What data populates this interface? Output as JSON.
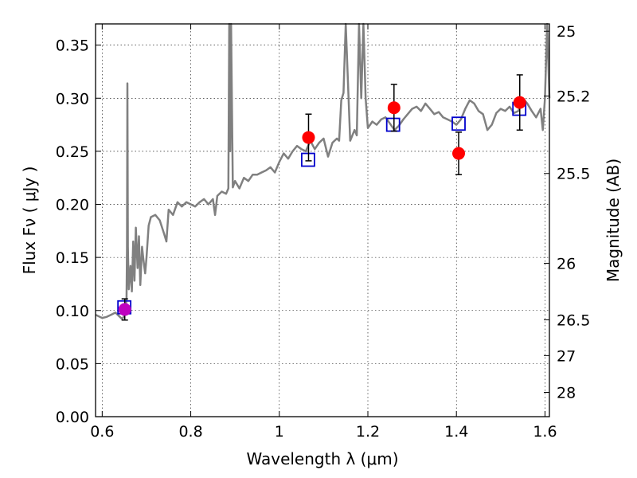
{
  "chart_data": {
    "type": "scatter",
    "xlabel": "Wavelength  λ (μm)",
    "ylabel": "Flux  Fν  ( μJy )",
    "y2label": "Magnitude (AB)",
    "xlim": [
      0.585,
      1.61
    ],
    "ylim": [
      0.0,
      0.37
    ],
    "grid": true,
    "x_ticks": [
      0.6,
      0.8,
      1.0,
      1.2,
      1.4,
      1.6
    ],
    "x_tick_labels": [
      "0.6",
      "0.8",
      "1",
      "1.2",
      "1.4",
      "1.6"
    ],
    "y_ticks": [
      0.0,
      0.05,
      0.1,
      0.15,
      0.2,
      0.25,
      0.3,
      0.35
    ],
    "y_tick_labels": [
      "0.00",
      "0.05",
      "0.10",
      "0.15",
      "0.20",
      "0.25",
      "0.30",
      "0.35"
    ],
    "y2_ticks": [
      {
        "label": "25",
        "flux": 0.3631
      },
      {
        "label": "25.2",
        "flux": 0.302
      },
      {
        "label": "25.5",
        "flux": 0.2291
      },
      {
        "label": "26",
        "flux": 0.1445
      },
      {
        "label": "26.5",
        "flux": 0.0912
      },
      {
        "label": "27",
        "flux": 0.0575
      },
      {
        "label": "28",
        "flux": 0.0229
      }
    ],
    "series": [
      {
        "kind": "line",
        "color": "#808080",
        "x": [
          0.585,
          0.6,
          0.61,
          0.62,
          0.63,
          0.64,
          0.645,
          0.65,
          0.655,
          0.656,
          0.657,
          0.658,
          0.66,
          0.662,
          0.664,
          0.667,
          0.67,
          0.673,
          0.676,
          0.68,
          0.683,
          0.686,
          0.69,
          0.693,
          0.697,
          0.7,
          0.705,
          0.71,
          0.72,
          0.73,
          0.74,
          0.745,
          0.75,
          0.76,
          0.77,
          0.78,
          0.79,
          0.8,
          0.81,
          0.82,
          0.83,
          0.84,
          0.85,
          0.855,
          0.86,
          0.87,
          0.88,
          0.885,
          0.887,
          0.889,
          0.891,
          0.895,
          0.9,
          0.91,
          0.92,
          0.93,
          0.94,
          0.95,
          0.96,
          0.97,
          0.98,
          0.99,
          1.0,
          1.01,
          1.02,
          1.03,
          1.04,
          1.05,
          1.06,
          1.07,
          1.08,
          1.09,
          1.1,
          1.11,
          1.12,
          1.13,
          1.135,
          1.14,
          1.145,
          1.15,
          1.16,
          1.17,
          1.175,
          1.18,
          1.185,
          1.19,
          1.195,
          1.2,
          1.21,
          1.22,
          1.23,
          1.24,
          1.25,
          1.26,
          1.27,
          1.28,
          1.29,
          1.3,
          1.31,
          1.32,
          1.33,
          1.34,
          1.35,
          1.36,
          1.37,
          1.38,
          1.39,
          1.4,
          1.41,
          1.42,
          1.43,
          1.44,
          1.45,
          1.46,
          1.47,
          1.48,
          1.49,
          1.5,
          1.51,
          1.52,
          1.53,
          1.54,
          1.55,
          1.56,
          1.57,
          1.58,
          1.59,
          1.595,
          1.6,
          1.605,
          1.61
        ],
        "y": [
          0.096,
          0.093,
          0.094,
          0.096,
          0.098,
          0.094,
          0.092,
          0.095,
          0.11,
          0.16,
          0.314,
          0.16,
          0.12,
          0.13,
          0.142,
          0.118,
          0.165,
          0.128,
          0.178,
          0.14,
          0.17,
          0.124,
          0.16,
          0.148,
          0.135,
          0.15,
          0.18,
          0.188,
          0.19,
          0.185,
          0.172,
          0.165,
          0.195,
          0.19,
          0.202,
          0.198,
          0.202,
          0.2,
          0.198,
          0.202,
          0.205,
          0.2,
          0.205,
          0.19,
          0.208,
          0.212,
          0.21,
          0.215,
          0.37,
          0.25,
          0.37,
          0.216,
          0.222,
          0.215,
          0.225,
          0.222,
          0.228,
          0.228,
          0.23,
          0.232,
          0.235,
          0.23,
          0.24,
          0.248,
          0.243,
          0.25,
          0.255,
          0.252,
          0.25,
          0.26,
          0.252,
          0.258,
          0.262,
          0.245,
          0.258,
          0.262,
          0.26,
          0.298,
          0.305,
          0.37,
          0.26,
          0.27,
          0.265,
          0.37,
          0.3,
          0.37,
          0.3,
          0.272,
          0.278,
          0.275,
          0.28,
          0.282,
          0.276,
          0.27,
          0.274,
          0.28,
          0.285,
          0.29,
          0.292,
          0.288,
          0.295,
          0.29,
          0.285,
          0.287,
          0.282,
          0.28,
          0.278,
          0.275,
          0.28,
          0.29,
          0.298,
          0.295,
          0.288,
          0.285,
          0.27,
          0.275,
          0.286,
          0.29,
          0.288,
          0.292,
          0.286,
          0.288,
          0.3,
          0.295,
          0.288,
          0.282,
          0.29,
          0.27,
          0.3,
          0.37,
          0.3
        ]
      },
      {
        "kind": "open-squares",
        "color": "#0000cc",
        "x": [
          0.65,
          1.065,
          1.257,
          1.405,
          1.542
        ],
        "y": [
          0.103,
          0.242,
          0.275,
          0.276,
          0.29
        ]
      },
      {
        "kind": "points-with-errors",
        "color": "#ff0000",
        "x": [
          1.066,
          1.259,
          1.405,
          1.543
        ],
        "y": [
          0.263,
          0.291,
          0.248,
          0.296
        ],
        "yerr": [
          0.022,
          0.022,
          0.02,
          0.026
        ]
      },
      {
        "kind": "points-with-errors",
        "color": "#bf00bf",
        "x": [
          0.651
        ],
        "y": [
          0.101
        ],
        "yerr": [
          0.01
        ]
      }
    ]
  }
}
